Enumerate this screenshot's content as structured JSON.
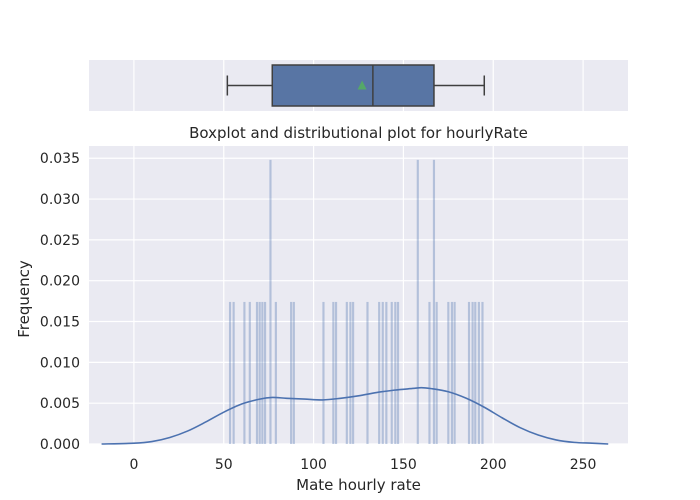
{
  "chart_data": [
    {
      "type": "box",
      "orientation": "horizontal",
      "xlim": [
        -25,
        275
      ],
      "min": 52,
      "q1": 77,
      "median": 133,
      "q3": 167,
      "max": 195,
      "mean": 127,
      "box_color": "#5875a4",
      "mean_marker_color": "#55a868",
      "grid": true
    },
    {
      "type": "histogram+kde",
      "title": "Boxplot and distributional plot for hourlyRate",
      "xlabel": "Mate hourly rate",
      "ylabel": "Frequency",
      "xlim": [
        -25,
        275
      ],
      "ylim": [
        0,
        0.0365
      ],
      "xticks": [
        "0",
        "50",
        "100",
        "150",
        "200",
        "250"
      ],
      "yticks": [
        "0.000",
        "0.005",
        "0.010",
        "0.015",
        "0.020",
        "0.025",
        "0.030",
        "0.035"
      ],
      "bar_color": "#4c72b0",
      "line_color": "#4c72b0",
      "grid": true,
      "bars": [
        {
          "x": 53.5,
          "value": 0.0174
        },
        {
          "x": 55.5,
          "value": 0.0174
        },
        {
          "x": 61.5,
          "value": 0.0174
        },
        {
          "x": 64.5,
          "value": 0.0174
        },
        {
          "x": 68.5,
          "value": 0.0174
        },
        {
          "x": 70.0,
          "value": 0.0174
        },
        {
          "x": 71.5,
          "value": 0.0174
        },
        {
          "x": 73.0,
          "value": 0.0174
        },
        {
          "x": 76.0,
          "value": 0.0348
        },
        {
          "x": 79.0,
          "value": 0.0174
        },
        {
          "x": 87.5,
          "value": 0.0174
        },
        {
          "x": 89.0,
          "value": 0.0174
        },
        {
          "x": 105.5,
          "value": 0.0174
        },
        {
          "x": 111.0,
          "value": 0.0174
        },
        {
          "x": 112.5,
          "value": 0.0174
        },
        {
          "x": 118.5,
          "value": 0.0174
        },
        {
          "x": 120.5,
          "value": 0.0174
        },
        {
          "x": 122.0,
          "value": 0.0174
        },
        {
          "x": 130.0,
          "value": 0.0174
        },
        {
          "x": 136.5,
          "value": 0.0174
        },
        {
          "x": 138.5,
          "value": 0.0174
        },
        {
          "x": 140.5,
          "value": 0.0174
        },
        {
          "x": 143.5,
          "value": 0.0174
        },
        {
          "x": 145.5,
          "value": 0.0174
        },
        {
          "x": 147.0,
          "value": 0.0174
        },
        {
          "x": 158.0,
          "value": 0.0348
        },
        {
          "x": 164.5,
          "value": 0.0174
        },
        {
          "x": 167.0,
          "value": 0.0348
        },
        {
          "x": 168.5,
          "value": 0.0174
        },
        {
          "x": 175.0,
          "value": 0.0174
        },
        {
          "x": 177.0,
          "value": 0.0174
        },
        {
          "x": 178.5,
          "value": 0.0174
        },
        {
          "x": 186.5,
          "value": 0.0174
        },
        {
          "x": 188.5,
          "value": 0.0174
        },
        {
          "x": 190.0,
          "value": 0.0174
        },
        {
          "x": 192.0,
          "value": 0.0174
        },
        {
          "x": 194.0,
          "value": 0.0174
        }
      ],
      "kde": {
        "x": [
          -18,
          0,
          10,
          20,
          30,
          40,
          50,
          60,
          70,
          77,
          85,
          95,
          105,
          115,
          125,
          135,
          145,
          155,
          160,
          165,
          175,
          185,
          195,
          205,
          215,
          225,
          235,
          245,
          255,
          264
        ],
        "y": [
          0.0,
          0.0001,
          0.0003,
          0.0008,
          0.0016,
          0.0027,
          0.0039,
          0.0049,
          0.0055,
          0.0057,
          0.0056,
          0.0055,
          0.0054,
          0.0056,
          0.0059,
          0.0063,
          0.0066,
          0.0068,
          0.0069,
          0.0068,
          0.0064,
          0.0056,
          0.0045,
          0.0032,
          0.002,
          0.0011,
          0.0005,
          0.0002,
          0.0001,
          0.0
        ]
      }
    }
  ]
}
